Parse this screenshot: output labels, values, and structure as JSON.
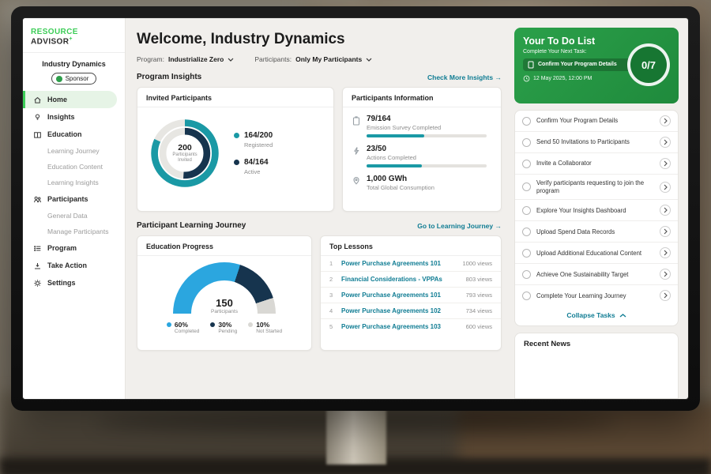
{
  "brand": {
    "primary": "RESOURCE",
    "secondary": "ADVISOR",
    "superscript": "+"
  },
  "sidebar": {
    "org": "Industry Dynamics",
    "role_badge": "Sponsor",
    "items": [
      {
        "label": "Home"
      },
      {
        "label": "Insights"
      },
      {
        "label": "Education"
      },
      {
        "label": "Learning Journey"
      },
      {
        "label": "Education Content"
      },
      {
        "label": "Learning Insights"
      },
      {
        "label": "Participants"
      },
      {
        "label": "General Data"
      },
      {
        "label": "Manage Participants"
      },
      {
        "label": "Program"
      },
      {
        "label": "Take Action"
      },
      {
        "label": "Settings"
      }
    ]
  },
  "header": {
    "welcome": "Welcome, Industry Dynamics"
  },
  "filters": {
    "program_label": "Program:",
    "program_value": "Industrialize Zero",
    "participants_label": "Participants:",
    "participants_value": "Only My Participants"
  },
  "sections": {
    "program_insights": "Program Insights",
    "insights_link": "Check More Insights",
    "learning_journey": "Participant Learning Journey",
    "journey_link": "Go to Learning Journey",
    "arrow": "→"
  },
  "chart_data": [
    {
      "type": "donut",
      "title": "Invited Participants",
      "center_value": "200",
      "center_label": "Participants Invited",
      "track_color": "#e7e6e2",
      "series": [
        {
          "name": "Registered",
          "display": "164/200",
          "value": 164,
          "total": 200,
          "pct": 82,
          "color": "#1a99a5"
        },
        {
          "name": "Active",
          "display": "84/164",
          "value": 84,
          "total": 164,
          "pct": 51,
          "color": "#16344e"
        }
      ]
    },
    {
      "type": "gauge",
      "title": "Education Progress",
      "center_value": "150",
      "center_label": "Participants",
      "segments": [
        {
          "label": "Completed",
          "display": "60%",
          "pct": 60,
          "color": "#2ba6df"
        },
        {
          "label": "Pending",
          "display": "30%",
          "pct": 30,
          "color": "#16344e"
        },
        {
          "label": "Not Started",
          "display": "10%",
          "pct": 10,
          "color": "#d9d8d4"
        }
      ]
    },
    {
      "type": "progress",
      "title": "Participants Information",
      "items": [
        {
          "value": "79/164",
          "label": "Emission Survey Completed",
          "pct": 48,
          "color": "#1a99a5"
        },
        {
          "value": "23/50",
          "label": "Actions Completed",
          "pct": 46,
          "color": "#1a99a5"
        },
        {
          "value": "1,000 GWh",
          "label": "Total Global Consumption"
        }
      ]
    },
    {
      "type": "table",
      "title": "Top Lessons",
      "rows": [
        {
          "rank": "1",
          "title": "Power Purchase Agreements 101",
          "views": "1000 views"
        },
        {
          "rank": "2",
          "title": "Financial Considerations - VPPAs",
          "views": "803 views"
        },
        {
          "rank": "3",
          "title": "Power Purchase Agreements 101",
          "views": "793 views"
        },
        {
          "rank": "4",
          "title": "Power Purchase Agreements 102",
          "views": "734 views"
        },
        {
          "rank": "5",
          "title": "Power Purchase Agreements 103",
          "views": "600 views"
        }
      ]
    }
  ],
  "todo": {
    "title": "Your To Do List",
    "subtitle": "Complete Your Next Task:",
    "next_task": "Confirm Your Program Details",
    "due": "12 May 2025, 12:00 PM",
    "progress": "0/7"
  },
  "tasks": {
    "items": [
      {
        "label": "Confirm Your Program Details"
      },
      {
        "label": "Send 50 Invitations to Participants"
      },
      {
        "label": "Invite a Collaborator"
      },
      {
        "label": "Verify participants requesting to join the program"
      },
      {
        "label": "Explore Your Insights Dashboard"
      },
      {
        "label": "Upload Spend Data Records"
      },
      {
        "label": "Upload Additional Educational Content"
      },
      {
        "label": "Achieve One Sustainability Target"
      },
      {
        "label": "Complete Your Learning Journey"
      }
    ],
    "collapse": "Collapse Tasks"
  },
  "news": {
    "title": "Recent News"
  }
}
